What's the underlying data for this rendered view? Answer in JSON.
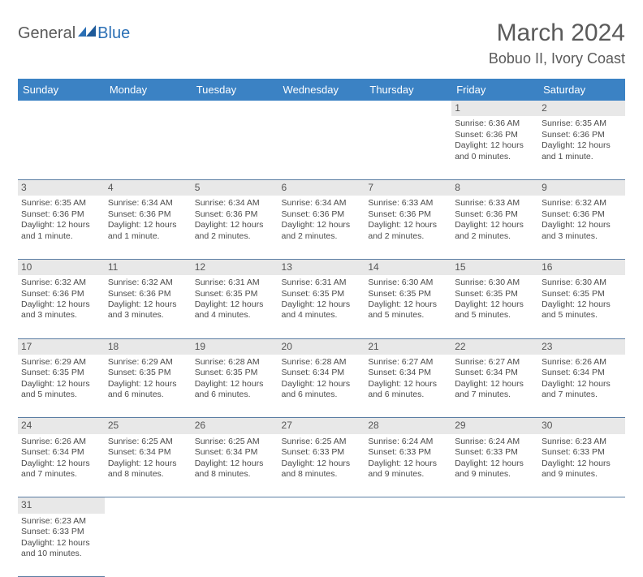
{
  "logo": {
    "general": "General",
    "blue": "Blue"
  },
  "title": "March 2024",
  "location": "Bobuo II, Ivory Coast",
  "colors": {
    "header_bg": "#3b82c4",
    "header_text": "#ffffff",
    "daynum_bg": "#e8e8e8",
    "text": "#4b4b4b",
    "row_border": "#5b7da3",
    "title_color": "#5a5a5a",
    "logo_blue": "#2a6fb5"
  },
  "weekdays": [
    "Sunday",
    "Monday",
    "Tuesday",
    "Wednesday",
    "Thursday",
    "Friday",
    "Saturday"
  ],
  "weeks": [
    [
      null,
      null,
      null,
      null,
      null,
      {
        "n": "1",
        "sr": "Sunrise: 6:36 AM",
        "ss": "Sunset: 6:36 PM",
        "d1": "Daylight: 12 hours",
        "d2": "and 0 minutes."
      },
      {
        "n": "2",
        "sr": "Sunrise: 6:35 AM",
        "ss": "Sunset: 6:36 PM",
        "d1": "Daylight: 12 hours",
        "d2": "and 1 minute."
      }
    ],
    [
      {
        "n": "3",
        "sr": "Sunrise: 6:35 AM",
        "ss": "Sunset: 6:36 PM",
        "d1": "Daylight: 12 hours",
        "d2": "and 1 minute."
      },
      {
        "n": "4",
        "sr": "Sunrise: 6:34 AM",
        "ss": "Sunset: 6:36 PM",
        "d1": "Daylight: 12 hours",
        "d2": "and 1 minute."
      },
      {
        "n": "5",
        "sr": "Sunrise: 6:34 AM",
        "ss": "Sunset: 6:36 PM",
        "d1": "Daylight: 12 hours",
        "d2": "and 2 minutes."
      },
      {
        "n": "6",
        "sr": "Sunrise: 6:34 AM",
        "ss": "Sunset: 6:36 PM",
        "d1": "Daylight: 12 hours",
        "d2": "and 2 minutes."
      },
      {
        "n": "7",
        "sr": "Sunrise: 6:33 AM",
        "ss": "Sunset: 6:36 PM",
        "d1": "Daylight: 12 hours",
        "d2": "and 2 minutes."
      },
      {
        "n": "8",
        "sr": "Sunrise: 6:33 AM",
        "ss": "Sunset: 6:36 PM",
        "d1": "Daylight: 12 hours",
        "d2": "and 2 minutes."
      },
      {
        "n": "9",
        "sr": "Sunrise: 6:32 AM",
        "ss": "Sunset: 6:36 PM",
        "d1": "Daylight: 12 hours",
        "d2": "and 3 minutes."
      }
    ],
    [
      {
        "n": "10",
        "sr": "Sunrise: 6:32 AM",
        "ss": "Sunset: 6:36 PM",
        "d1": "Daylight: 12 hours",
        "d2": "and 3 minutes."
      },
      {
        "n": "11",
        "sr": "Sunrise: 6:32 AM",
        "ss": "Sunset: 6:36 PM",
        "d1": "Daylight: 12 hours",
        "d2": "and 3 minutes."
      },
      {
        "n": "12",
        "sr": "Sunrise: 6:31 AM",
        "ss": "Sunset: 6:35 PM",
        "d1": "Daylight: 12 hours",
        "d2": "and 4 minutes."
      },
      {
        "n": "13",
        "sr": "Sunrise: 6:31 AM",
        "ss": "Sunset: 6:35 PM",
        "d1": "Daylight: 12 hours",
        "d2": "and 4 minutes."
      },
      {
        "n": "14",
        "sr": "Sunrise: 6:30 AM",
        "ss": "Sunset: 6:35 PM",
        "d1": "Daylight: 12 hours",
        "d2": "and 5 minutes."
      },
      {
        "n": "15",
        "sr": "Sunrise: 6:30 AM",
        "ss": "Sunset: 6:35 PM",
        "d1": "Daylight: 12 hours",
        "d2": "and 5 minutes."
      },
      {
        "n": "16",
        "sr": "Sunrise: 6:30 AM",
        "ss": "Sunset: 6:35 PM",
        "d1": "Daylight: 12 hours",
        "d2": "and 5 minutes."
      }
    ],
    [
      {
        "n": "17",
        "sr": "Sunrise: 6:29 AM",
        "ss": "Sunset: 6:35 PM",
        "d1": "Daylight: 12 hours",
        "d2": "and 5 minutes."
      },
      {
        "n": "18",
        "sr": "Sunrise: 6:29 AM",
        "ss": "Sunset: 6:35 PM",
        "d1": "Daylight: 12 hours",
        "d2": "and 6 minutes."
      },
      {
        "n": "19",
        "sr": "Sunrise: 6:28 AM",
        "ss": "Sunset: 6:35 PM",
        "d1": "Daylight: 12 hours",
        "d2": "and 6 minutes."
      },
      {
        "n": "20",
        "sr": "Sunrise: 6:28 AM",
        "ss": "Sunset: 6:34 PM",
        "d1": "Daylight: 12 hours",
        "d2": "and 6 minutes."
      },
      {
        "n": "21",
        "sr": "Sunrise: 6:27 AM",
        "ss": "Sunset: 6:34 PM",
        "d1": "Daylight: 12 hours",
        "d2": "and 6 minutes."
      },
      {
        "n": "22",
        "sr": "Sunrise: 6:27 AM",
        "ss": "Sunset: 6:34 PM",
        "d1": "Daylight: 12 hours",
        "d2": "and 7 minutes."
      },
      {
        "n": "23",
        "sr": "Sunrise: 6:26 AM",
        "ss": "Sunset: 6:34 PM",
        "d1": "Daylight: 12 hours",
        "d2": "and 7 minutes."
      }
    ],
    [
      {
        "n": "24",
        "sr": "Sunrise: 6:26 AM",
        "ss": "Sunset: 6:34 PM",
        "d1": "Daylight: 12 hours",
        "d2": "and 7 minutes."
      },
      {
        "n": "25",
        "sr": "Sunrise: 6:25 AM",
        "ss": "Sunset: 6:34 PM",
        "d1": "Daylight: 12 hours",
        "d2": "and 8 minutes."
      },
      {
        "n": "26",
        "sr": "Sunrise: 6:25 AM",
        "ss": "Sunset: 6:34 PM",
        "d1": "Daylight: 12 hours",
        "d2": "and 8 minutes."
      },
      {
        "n": "27",
        "sr": "Sunrise: 6:25 AM",
        "ss": "Sunset: 6:33 PM",
        "d1": "Daylight: 12 hours",
        "d2": "and 8 minutes."
      },
      {
        "n": "28",
        "sr": "Sunrise: 6:24 AM",
        "ss": "Sunset: 6:33 PM",
        "d1": "Daylight: 12 hours",
        "d2": "and 9 minutes."
      },
      {
        "n": "29",
        "sr": "Sunrise: 6:24 AM",
        "ss": "Sunset: 6:33 PM",
        "d1": "Daylight: 12 hours",
        "d2": "and 9 minutes."
      },
      {
        "n": "30",
        "sr": "Sunrise: 6:23 AM",
        "ss": "Sunset: 6:33 PM",
        "d1": "Daylight: 12 hours",
        "d2": "and 9 minutes."
      }
    ],
    [
      {
        "n": "31",
        "sr": "Sunrise: 6:23 AM",
        "ss": "Sunset: 6:33 PM",
        "d1": "Daylight: 12 hours",
        "d2": "and 10 minutes."
      },
      null,
      null,
      null,
      null,
      null,
      null
    ]
  ]
}
